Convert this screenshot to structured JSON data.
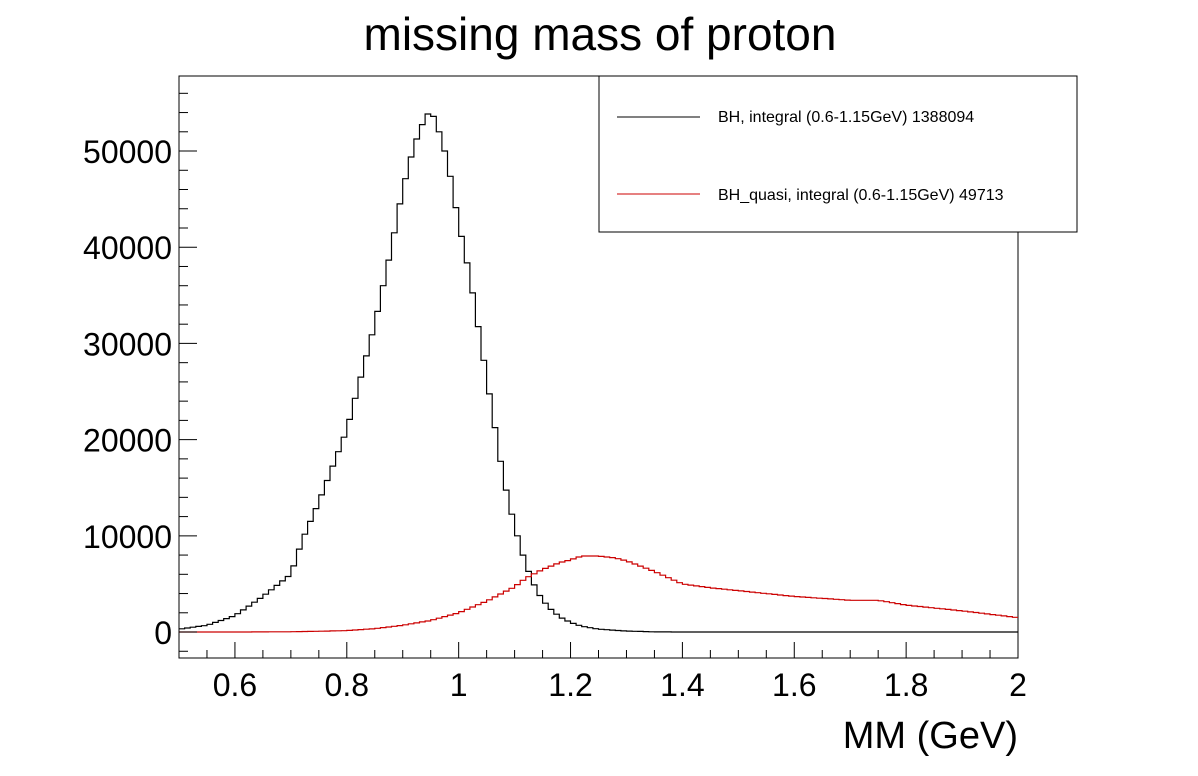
{
  "chart_data": {
    "type": "line",
    "title": "missing mass of proton",
    "xlabel": "MM (GeV)",
    "ylabel": "",
    "xlim": [
      0.5,
      2.0
    ],
    "ylim": [
      -2700,
      57800
    ],
    "xticks": [
      "0.6",
      "0.8",
      "1",
      "1.2",
      "1.4",
      "1.6",
      "1.8",
      "2"
    ],
    "yticks": [
      "0",
      "10000",
      "20000",
      "30000",
      "40000",
      "50000"
    ],
    "grid": false,
    "legend_position": "top-right",
    "series": [
      {
        "name": "BH, integral (0.6-1.15GeV) 1388094",
        "color": "#000000",
        "style": "step",
        "x": [
          0.5,
          0.55,
          0.6,
          0.65,
          0.7,
          0.72,
          0.75,
          0.8,
          0.85,
          0.88,
          0.9,
          0.92,
          0.94,
          0.95,
          0.96,
          0.98,
          1.0,
          1.02,
          1.04,
          1.06,
          1.08,
          1.1,
          1.12,
          1.14,
          1.16,
          1.18,
          1.2,
          1.22,
          1.25,
          1.3,
          1.35,
          1.4,
          1.6,
          1.8,
          2.0
        ],
        "y": [
          300,
          700,
          1700,
          3700,
          6000,
          9500,
          13500,
          21000,
          32000,
          40000,
          46000,
          50500,
          53500,
          54200,
          53000,
          49000,
          42500,
          37000,
          30000,
          23000,
          16000,
          11000,
          7000,
          4200,
          2600,
          1600,
          1000,
          600,
          300,
          100,
          20,
          0,
          0,
          0,
          0
        ]
      },
      {
        "name": "BH_quasi, integral (0.6-1.15GeV) 49713",
        "color": "#cc0000",
        "style": "step",
        "x": [
          0.5,
          0.6,
          0.7,
          0.75,
          0.8,
          0.85,
          0.9,
          0.95,
          1.0,
          1.05,
          1.1,
          1.12,
          1.15,
          1.18,
          1.2,
          1.22,
          1.25,
          1.28,
          1.3,
          1.35,
          1.4,
          1.45,
          1.5,
          1.6,
          1.7,
          1.75,
          1.8,
          1.9,
          2.0
        ],
        "y": [
          0,
          0,
          30,
          80,
          150,
          350,
          700,
          1200,
          2000,
          3200,
          4700,
          5600,
          6500,
          7200,
          7500,
          7900,
          7900,
          7700,
          7400,
          6300,
          5000,
          4600,
          4300,
          3700,
          3300,
          3300,
          2800,
          2200,
          1500
        ]
      }
    ]
  }
}
